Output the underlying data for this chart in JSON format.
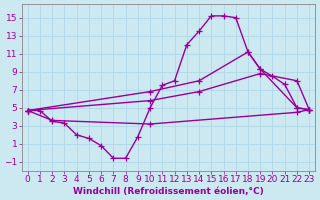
{
  "line1_x": [
    0,
    1,
    2,
    3,
    4,
    5,
    6,
    7,
    8,
    9,
    10,
    11,
    12,
    13,
    14,
    15,
    16,
    17,
    18,
    19,
    20,
    21,
    22,
    23
  ],
  "line1_y": [
    4.7,
    4.7,
    3.5,
    3.3,
    2.0,
    1.6,
    0.8,
    -0.6,
    -0.6,
    1.8,
    5.0,
    7.5,
    8.0,
    12.0,
    13.5,
    15.2,
    15.2,
    15.0,
    11.2,
    9.3,
    8.5,
    7.6,
    5.0,
    4.8
  ],
  "line2_x": [
    0,
    10,
    14,
    18,
    19,
    22,
    23
  ],
  "line2_y": [
    4.7,
    6.8,
    8.0,
    11.2,
    9.3,
    5.0,
    4.8
  ],
  "line3_x": [
    0,
    10,
    14,
    19,
    22,
    23
  ],
  "line3_y": [
    4.7,
    5.8,
    6.8,
    8.8,
    8.0,
    4.8
  ],
  "line4_x": [
    0,
    2,
    10,
    22,
    23
  ],
  "line4_y": [
    4.7,
    3.6,
    3.2,
    4.5,
    4.8
  ],
  "color": "#990099",
  "bg_color": "#cce8f0",
  "grid_color": "#b0d8e8",
  "xlabel": "Windchill (Refroidissement éolien,°C)",
  "xlim": [
    -0.5,
    23.5
  ],
  "ylim": [
    -2.0,
    16.5
  ],
  "yticks": [
    -1,
    1,
    3,
    5,
    7,
    9,
    11,
    13,
    15
  ],
  "xticks": [
    0,
    1,
    2,
    3,
    4,
    5,
    6,
    7,
    8,
    9,
    10,
    11,
    12,
    13,
    14,
    15,
    16,
    17,
    18,
    19,
    20,
    21,
    22,
    23
  ],
  "marker": "+",
  "linewidth": 1.0,
  "markersize": 4,
  "label_fontsize": 6.5
}
